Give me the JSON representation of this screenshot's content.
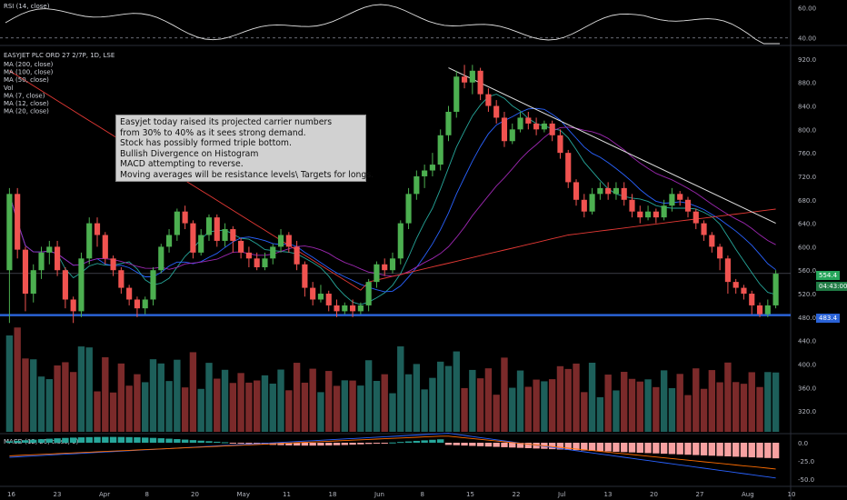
{
  "chart_data": {
    "type": "candlestick",
    "symbol_line": "EASYJET PLC ORD 27 2/7P, 1D, LSE",
    "indicator_labels": [
      "MA (200, close)",
      "MA (100, close)",
      "MA (50, close)",
      "Vol",
      "MA (7, close)",
      "MA (12, close)",
      "MA (20, close)"
    ],
    "rsi_label": "RSI (14, close)",
    "macd_label": "MACD (12, 26, close, 9)",
    "annotation": [
      "Easyjet today raised its projected carrier numbers",
      "from 30% to 40% as it sees strong demand.",
      "Stock has possibly formed triple bottom.",
      "Bullish Divergence on Histogram",
      "MACD attempting to reverse.",
      "Moving averages will be resistance levels\\ Targets for longs."
    ],
    "x_ticks": [
      "16",
      "23",
      "Apr",
      "8",
      "20",
      "May",
      "11",
      "18",
      "Jun",
      "8",
      "15",
      "22",
      "Jul",
      "13",
      "20",
      "27",
      "Aug",
      "10"
    ],
    "y_ticks": [
      "920.0",
      "880.0",
      "840.0",
      "800.0",
      "760.0",
      "720.0",
      "680.0",
      "640.0",
      "600.0",
      "560.0",
      "520.0",
      "480.0",
      "440.0",
      "400.0",
      "360.0",
      "320.0"
    ],
    "rsi_ticks": [
      "60.00",
      "40.00"
    ],
    "macd_ticks": [
      "0.0",
      "-25.0",
      "-50.0"
    ],
    "current_price": "554.4",
    "countdown": "04:43:00",
    "support_level": "483.4",
    "ylim": [
      300,
      940
    ],
    "candles": [
      [
        560,
        690,
        470,
        700
      ],
      [
        690,
        595,
        580,
        700
      ],
      [
        595,
        520,
        490,
        600
      ],
      [
        520,
        560,
        505,
        570
      ],
      [
        560,
        590,
        545,
        600
      ],
      [
        590,
        600,
        570,
        610
      ],
      [
        600,
        560,
        550,
        610
      ],
      [
        560,
        510,
        495,
        565
      ],
      [
        510,
        490,
        470,
        515
      ],
      [
        490,
        580,
        480,
        590
      ],
      [
        580,
        640,
        570,
        650
      ],
      [
        640,
        620,
        600,
        650
      ],
      [
        620,
        580,
        570,
        625
      ],
      [
        580,
        560,
        550,
        585
      ],
      [
        560,
        530,
        520,
        565
      ],
      [
        530,
        510,
        500,
        535
      ],
      [
        510,
        495,
        480,
        515
      ],
      [
        495,
        510,
        485,
        515
      ],
      [
        510,
        560,
        500,
        565
      ],
      [
        560,
        600,
        555,
        605
      ],
      [
        600,
        620,
        590,
        630
      ],
      [
        620,
        660,
        610,
        665
      ],
      [
        660,
        640,
        630,
        670
      ],
      [
        640,
        590,
        580,
        645
      ],
      [
        590,
        620,
        585,
        630
      ],
      [
        620,
        650,
        610,
        655
      ],
      [
        650,
        610,
        600,
        655
      ],
      [
        610,
        630,
        600,
        640
      ],
      [
        630,
        610,
        590,
        635
      ],
      [
        610,
        590,
        580,
        615
      ],
      [
        590,
        580,
        565,
        600
      ],
      [
        580,
        565,
        560,
        590
      ],
      [
        565,
        580,
        560,
        590
      ],
      [
        580,
        600,
        570,
        605
      ],
      [
        600,
        620,
        590,
        630
      ],
      [
        620,
        600,
        590,
        625
      ],
      [
        600,
        570,
        560,
        610
      ],
      [
        570,
        530,
        515,
        575
      ],
      [
        530,
        510,
        500,
        540
      ],
      [
        510,
        520,
        505,
        535
      ],
      [
        520,
        500,
        490,
        525
      ],
      [
        500,
        490,
        480,
        510
      ],
      [
        490,
        500,
        485,
        505
      ],
      [
        500,
        490,
        480,
        510
      ],
      [
        490,
        500,
        485,
        505
      ],
      [
        500,
        540,
        490,
        545
      ],
      [
        540,
        570,
        530,
        575
      ],
      [
        570,
        560,
        550,
        580
      ],
      [
        560,
        580,
        555,
        590
      ],
      [
        580,
        640,
        570,
        645
      ],
      [
        640,
        690,
        630,
        700
      ],
      [
        690,
        720,
        680,
        730
      ],
      [
        720,
        730,
        700,
        740
      ],
      [
        730,
        740,
        720,
        760
      ],
      [
        740,
        790,
        730,
        800
      ],
      [
        790,
        830,
        780,
        840
      ],
      [
        830,
        890,
        820,
        900
      ],
      [
        890,
        880,
        870,
        910
      ],
      [
        880,
        900,
        860,
        910
      ],
      [
        900,
        860,
        850,
        905
      ],
      [
        860,
        840,
        830,
        870
      ],
      [
        840,
        820,
        810,
        850
      ],
      [
        820,
        780,
        770,
        830
      ],
      [
        780,
        800,
        775,
        810
      ],
      [
        800,
        820,
        795,
        830
      ],
      [
        820,
        810,
        800,
        830
      ],
      [
        810,
        800,
        790,
        820
      ],
      [
        800,
        810,
        795,
        815
      ],
      [
        810,
        790,
        780,
        815
      ],
      [
        790,
        760,
        750,
        800
      ],
      [
        760,
        710,
        700,
        765
      ],
      [
        710,
        680,
        670,
        715
      ],
      [
        680,
        660,
        650,
        690
      ],
      [
        660,
        690,
        655,
        700
      ],
      [
        690,
        700,
        680,
        710
      ],
      [
        700,
        690,
        680,
        710
      ],
      [
        690,
        700,
        680,
        710
      ],
      [
        700,
        680,
        670,
        710
      ],
      [
        680,
        660,
        650,
        690
      ],
      [
        660,
        650,
        640,
        670
      ],
      [
        650,
        660,
        645,
        670
      ],
      [
        660,
        650,
        640,
        665
      ],
      [
        650,
        670,
        645,
        680
      ],
      [
        670,
        690,
        660,
        700
      ],
      [
        690,
        680,
        670,
        695
      ],
      [
        680,
        660,
        650,
        685
      ],
      [
        660,
        640,
        630,
        665
      ],
      [
        640,
        620,
        610,
        645
      ],
      [
        620,
        600,
        590,
        625
      ],
      [
        600,
        580,
        560,
        605
      ],
      [
        580,
        540,
        520,
        585
      ],
      [
        540,
        530,
        520,
        545
      ],
      [
        530,
        520,
        510,
        535
      ],
      [
        520,
        500,
        485,
        525
      ],
      [
        500,
        485,
        480,
        505
      ],
      [
        485,
        500,
        480,
        510
      ],
      [
        500,
        554,
        495,
        560
      ]
    ]
  }
}
